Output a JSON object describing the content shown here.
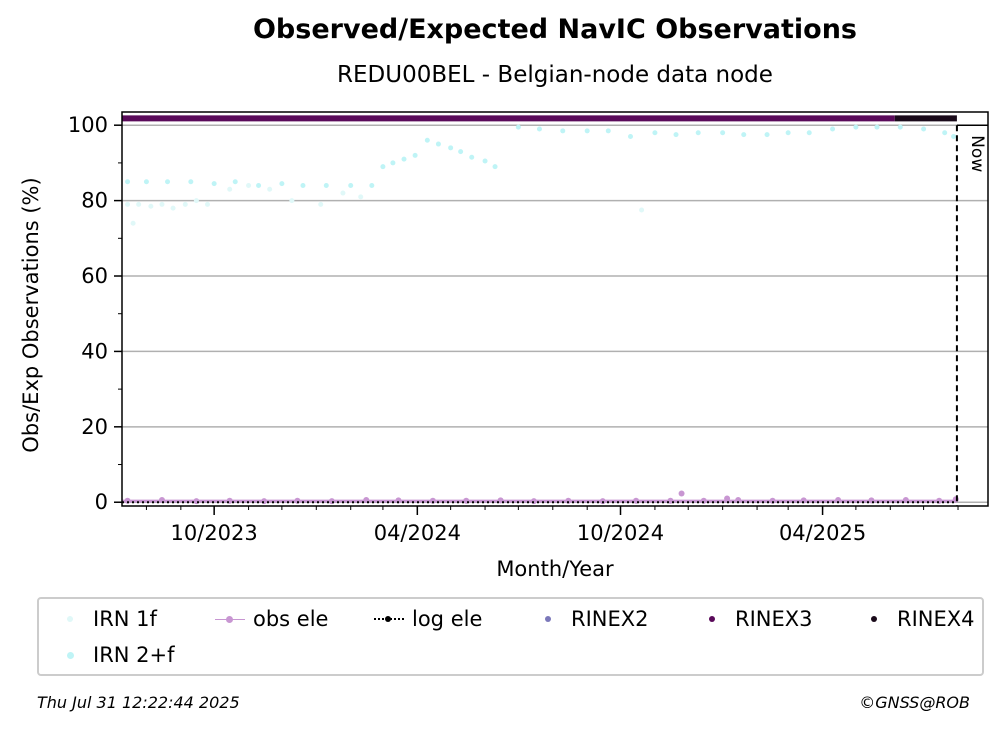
{
  "chart_data": {
    "type": "scatter",
    "title": "Observed/Expected NavIC Observations",
    "subtitle": "REDU00BEL - Belgian-node data node",
    "xlabel": "Month/Year",
    "ylabel": "Obs/Exp Observations (%)",
    "x_range": [
      "2023-07-10",
      "2025-08-28"
    ],
    "ylim": [
      -1,
      103.5
    ],
    "yticks": [
      0,
      20,
      40,
      60,
      80,
      100
    ],
    "xticks": [
      {
        "date": "2023-10-01",
        "label": "10/2023"
      },
      {
        "date": "2024-04-01",
        "label": "04/2024"
      },
      {
        "date": "2024-10-01",
        "label": "10/2024"
      },
      {
        "date": "2025-04-01",
        "label": "04/2025"
      }
    ],
    "grid": "horizontal",
    "now": {
      "date": "2025-07-31",
      "label": "Now"
    },
    "series": [
      {
        "name": "IRN 1f",
        "color": "#e0f8f8",
        "points": [
          [
            "2023-07-15",
            79
          ],
          [
            "2023-07-25",
            79
          ],
          [
            "2023-08-05",
            78.5
          ],
          [
            "2023-08-15",
            79
          ],
          [
            "2023-08-25",
            78
          ],
          [
            "2023-09-05",
            79
          ],
          [
            "2023-09-15",
            80
          ],
          [
            "2023-09-25",
            79
          ],
          [
            "2023-10-15",
            83
          ],
          [
            "2023-11-01",
            84
          ],
          [
            "2023-11-20",
            83
          ],
          [
            "2023-12-10",
            80
          ],
          [
            "2024-01-05",
            79
          ],
          [
            "2024-01-25",
            82
          ],
          [
            "2024-02-10",
            81
          ],
          [
            "2023-07-20",
            74
          ],
          [
            "2024-10-20",
            77.5
          ]
        ]
      },
      {
        "name": "IRN 2+f",
        "color": "#bff4f6",
        "points": [
          [
            "2023-07-15",
            85
          ],
          [
            "2023-08-01",
            85
          ],
          [
            "2023-08-20",
            85
          ],
          [
            "2023-09-10",
            85
          ],
          [
            "2023-10-01",
            84.5
          ],
          [
            "2023-10-20",
            85
          ],
          [
            "2023-11-10",
            84
          ],
          [
            "2023-12-01",
            84.5
          ],
          [
            "2023-12-20",
            84
          ],
          [
            "2024-01-10",
            84
          ],
          [
            "2024-02-01",
            84
          ],
          [
            "2024-02-20",
            84
          ],
          [
            "2024-03-01",
            89
          ],
          [
            "2024-03-10",
            90
          ],
          [
            "2024-03-20",
            91
          ],
          [
            "2024-03-30",
            92
          ],
          [
            "2024-04-10",
            96
          ],
          [
            "2024-04-20",
            95
          ],
          [
            "2024-05-01",
            94
          ],
          [
            "2024-05-10",
            93
          ],
          [
            "2024-05-20",
            91.5
          ],
          [
            "2024-06-01",
            90.5
          ],
          [
            "2024-06-10",
            89
          ],
          [
            "2024-07-01",
            99.5
          ],
          [
            "2024-07-20",
            99
          ],
          [
            "2024-08-10",
            98.5
          ],
          [
            "2024-09-01",
            98.5
          ],
          [
            "2024-09-20",
            98.5
          ],
          [
            "2024-10-10",
            97
          ],
          [
            "2024-11-01",
            98
          ],
          [
            "2024-11-20",
            97.5
          ],
          [
            "2024-12-10",
            98
          ],
          [
            "2025-01-01",
            98
          ],
          [
            "2025-01-20",
            97.5
          ],
          [
            "2025-02-10",
            97.5
          ],
          [
            "2025-03-01",
            98
          ],
          [
            "2025-03-20",
            98
          ],
          [
            "2025-04-10",
            99
          ],
          [
            "2025-05-01",
            99.5
          ],
          [
            "2025-05-20",
            99.5
          ],
          [
            "2025-06-10",
            99.5
          ],
          [
            "2025-07-01",
            99
          ],
          [
            "2025-07-20",
            98
          ],
          [
            "2025-07-28",
            97
          ]
        ]
      },
      {
        "name": "obs ele",
        "color": "#c896d2",
        "points": [
          [
            "2023-07-15",
            0.4
          ],
          [
            "2023-08-15",
            0.6
          ],
          [
            "2023-09-15",
            0.3
          ],
          [
            "2023-10-15",
            0.4
          ],
          [
            "2023-11-15",
            0.3
          ],
          [
            "2023-12-15",
            0.4
          ],
          [
            "2024-01-15",
            0.3
          ],
          [
            "2024-02-15",
            0.6
          ],
          [
            "2024-03-15",
            0.5
          ],
          [
            "2024-04-15",
            0.4
          ],
          [
            "2024-05-15",
            0.4
          ],
          [
            "2024-06-15",
            0.5
          ],
          [
            "2024-07-15",
            0.3
          ],
          [
            "2024-08-15",
            0.4
          ],
          [
            "2024-09-15",
            0.3
          ],
          [
            "2024-10-15",
            0.4
          ],
          [
            "2024-11-15",
            0.4
          ],
          [
            "2024-11-25",
            2.3
          ],
          [
            "2024-12-15",
            0.4
          ],
          [
            "2025-01-05",
            1.0
          ],
          [
            "2025-01-15",
            0.6
          ],
          [
            "2025-02-15",
            0.4
          ],
          [
            "2025-03-15",
            0.5
          ],
          [
            "2025-04-15",
            0.6
          ],
          [
            "2025-05-15",
            0.5
          ],
          [
            "2025-06-15",
            0.6
          ],
          [
            "2025-07-15",
            0.4
          ],
          [
            "2025-07-30",
            0.8
          ]
        ]
      },
      {
        "name": "log ele",
        "color": "#000000",
        "points": [
          [
            "2023-07-10",
            0
          ],
          [
            "2025-07-31",
            0
          ]
        ]
      },
      {
        "name": "RINEX2",
        "color": "#7b78ba",
        "points": []
      },
      {
        "name": "RINEX3",
        "color": "#5a0a5a",
        "points": [
          [
            "2023-07-10",
            101.8
          ],
          [
            "2025-06-05",
            101.8
          ]
        ]
      },
      {
        "name": "RINEX4",
        "color": "#1a0a1a",
        "points": [
          [
            "2025-06-05",
            101.8
          ],
          [
            "2025-07-31",
            101.8
          ]
        ]
      }
    ]
  },
  "legend": {
    "items": [
      {
        "label": "IRN 1f",
        "color": "#e0f8f8"
      },
      {
        "label": "obs ele",
        "color": "#c896d2"
      },
      {
        "label": "log ele",
        "color": "#000000"
      },
      {
        "label": "RINEX2",
        "color": "#7b78ba"
      },
      {
        "label": "RINEX3",
        "color": "#5a0a5a"
      },
      {
        "label": "RINEX4",
        "color": "#1a0a1a"
      },
      {
        "label": "IRN 2+f",
        "color": "#bff4f6"
      }
    ]
  },
  "footer": {
    "timestamp": "Thu Jul 31 12:22:44 2025",
    "credit": "©GNSS@ROB"
  }
}
